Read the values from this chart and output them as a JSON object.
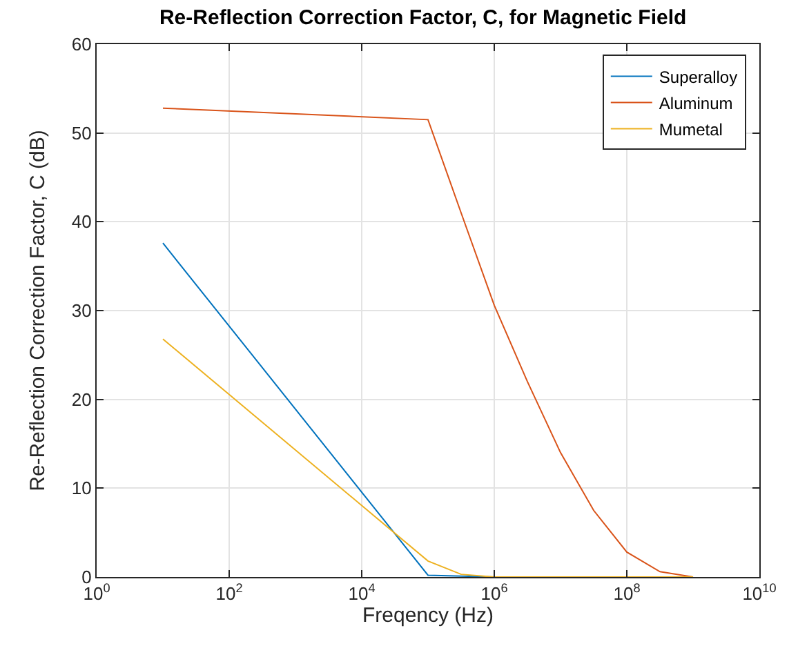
{
  "chart_data": {
    "type": "line",
    "title": "Re-Reflection Correction Factor, C, for Magnetic Field",
    "xlabel": "Freqency (Hz)",
    "ylabel": "Re-Reflection Correction Factor, C (dB)",
    "log": "x",
    "xlim": [
      1,
      10000000000
    ],
    "ylim": [
      0,
      60
    ],
    "xticks": [
      {
        "value": 1,
        "label": "10$^{0}$"
      },
      {
        "value": 100,
        "label": "10$^{2}$"
      },
      {
        "value": 10000,
        "label": "10$^{4}$"
      },
      {
        "value": 1000000,
        "label": "10$^{6}$"
      },
      {
        "value": 100000000,
        "label": "10$^{8}$"
      },
      {
        "value": 10000000000,
        "label": "10$^{10}$"
      }
    ],
    "yticks": [
      0,
      10,
      20,
      30,
      40,
      50,
      60
    ],
    "grid": true,
    "legend": "top right",
    "marker": "none",
    "line_style": "solid",
    "series": [
      {
        "name": "Superalloy",
        "color": "#0072bd",
        "x": [
          10,
          100000,
          1000000,
          1000000000
        ],
        "values": [
          37.6,
          0.2,
          0,
          0
        ]
      },
      {
        "name": "Aluminum",
        "color": "#d95319",
        "x": [
          10,
          100000,
          316228,
          1000000,
          3162278,
          10000000,
          31622777,
          100000000,
          316227766,
          1000000000
        ],
        "values": [
          52.8,
          51.5,
          41,
          30.6,
          22,
          14,
          7.5,
          2.8,
          0.6,
          0
        ]
      },
      {
        "name": "Mumetal",
        "color": "#edb120",
        "x": [
          10,
          100000,
          316228,
          1000000,
          1000000000
        ],
        "values": [
          26.8,
          1.8,
          0.3,
          0,
          0
        ]
      }
    ]
  }
}
